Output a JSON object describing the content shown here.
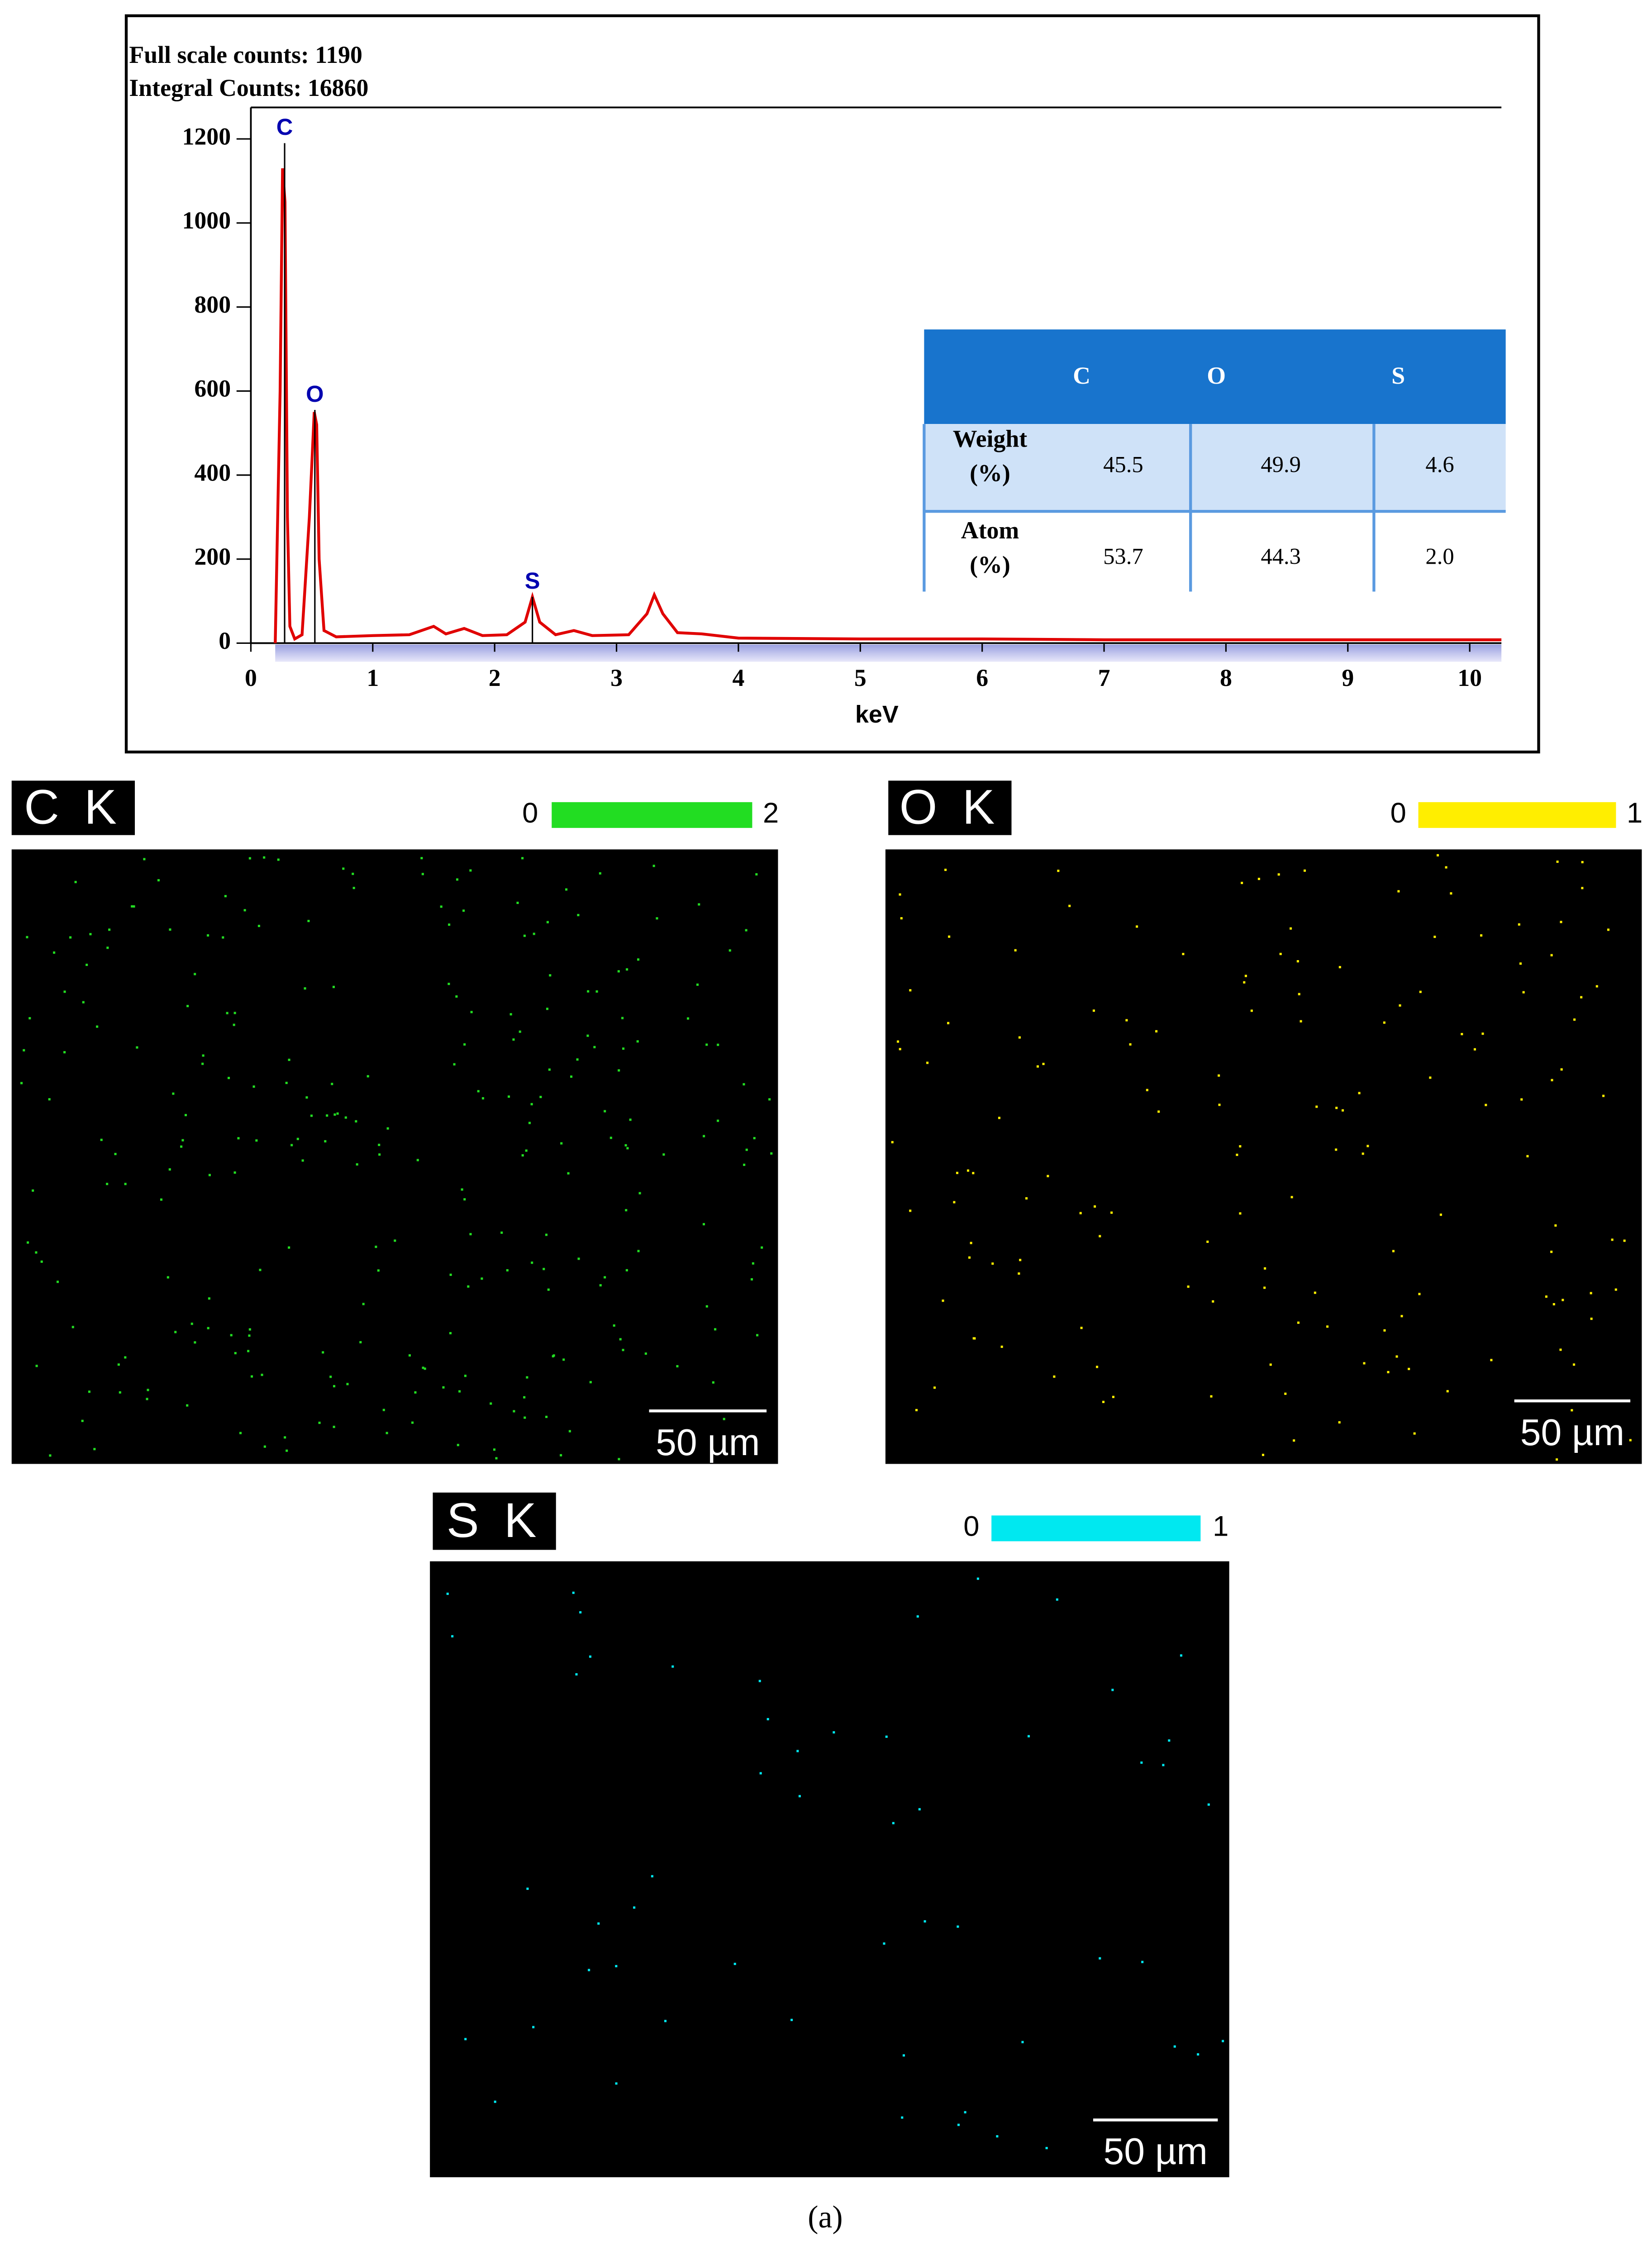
{
  "chart_data": {
    "type": "line",
    "header_lines": [
      "Full scale counts: 1190",
      "Integral Counts: 16860"
    ],
    "x_label": "keV",
    "x": [
      0.2,
      0.24,
      0.26,
      0.28,
      0.3,
      0.32,
      0.36,
      0.42,
      0.48,
      0.52,
      0.54,
      0.56,
      0.6,
      0.7,
      1.0,
      1.3,
      1.5,
      1.6,
      1.75,
      1.9,
      2.1,
      2.25,
      2.31,
      2.37,
      2.5,
      2.65,
      2.8,
      3.1,
      3.25,
      3.31,
      3.38,
      3.5,
      3.7,
      4.0,
      5.0,
      6.0,
      7.0,
      8.0,
      9.0,
      10.0,
      10.26
    ],
    "series": [
      {
        "color": "#e00000",
        "values": [
          0,
          600,
          1130,
          1050,
          300,
          40,
          10,
          20,
          300,
          550,
          520,
          200,
          30,
          15,
          18,
          20,
          40,
          22,
          35,
          18,
          20,
          50,
          110,
          50,
          20,
          30,
          18,
          20,
          70,
          115,
          70,
          25,
          22,
          12,
          10,
          10,
          8,
          8,
          8,
          8,
          8
        ]
      }
    ],
    "peak_labels": [
      {
        "text": "C",
        "x": 0.277,
        "y": 1190
      },
      {
        "text": "O",
        "x": 0.525,
        "y": 555
      },
      {
        "text": "S",
        "x": 2.31,
        "y": 110
      }
    ],
    "xlim": [
      0,
      10.26
    ],
    "ylim": [
      0,
      1275
    ],
    "xticks": [
      0,
      1,
      2,
      3,
      4,
      5,
      6,
      7,
      8,
      9,
      10
    ],
    "yticks": [
      0,
      200,
      400,
      600,
      800,
      1000,
      1200
    ],
    "table": {
      "columns": [
        "C",
        "O",
        "S"
      ],
      "rows": [
        {
          "label": [
            "Weight",
            "(%)"
          ],
          "cells": [
            "45.5",
            "49.9",
            "4.6"
          ]
        },
        {
          "label": [
            "Atom",
            "(%)"
          ],
          "cells": [
            "53.7",
            "44.3",
            "2.0"
          ]
        }
      ]
    }
  },
  "maps": [
    {
      "title": "C K",
      "color": "#22dd22",
      "scale": [
        0,
        2
      ],
      "scale_bar": "50 µm"
    },
    {
      "title": "O K",
      "color": "#ffee00",
      "scale": [
        0,
        1
      ],
      "scale_bar": "50 µm"
    },
    {
      "title": "S K",
      "color": "#00e8f0",
      "scale": [
        0,
        1
      ],
      "scale_bar": "50 µm"
    }
  ],
  "caption": "(a)"
}
